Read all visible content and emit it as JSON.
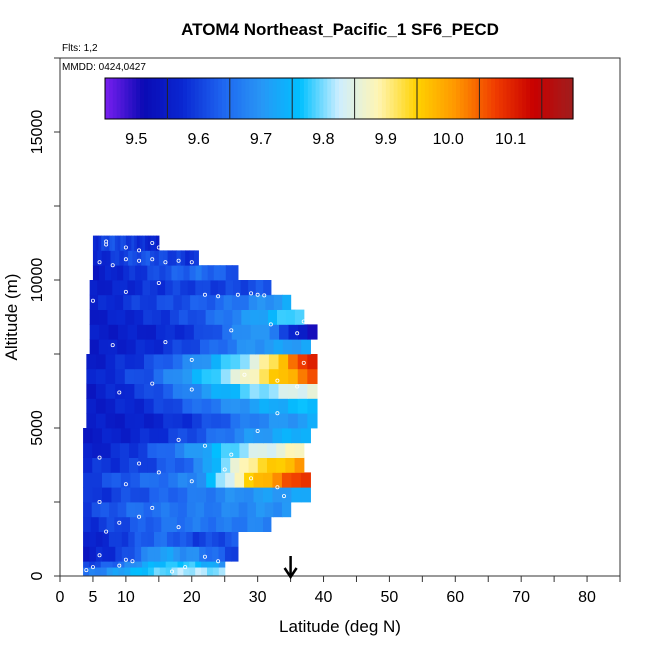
{
  "chart_data": {
    "type": "heatmap",
    "title": "ATOM4 Northeast_Pacific_1 SF6_PECD",
    "flights_label": "Flts: 1,2",
    "date_label": "MMDD: 0424,0427",
    "xlabel": "Latitude (deg N)",
    "ylabel": "Altitude (m)",
    "xlim": [
      0,
      85
    ],
    "ylim": [
      0,
      17500
    ],
    "x_ticks": [
      0,
      5,
      10,
      20,
      30,
      40,
      50,
      60,
      70,
      80
    ],
    "y_ticks": [
      0,
      5000,
      10000,
      15000
    ],
    "colorbar": {
      "min": 9.45,
      "max": 10.2,
      "ticks": [
        9.5,
        9.6,
        9.7,
        9.8,
        9.9,
        10.0,
        10.1
      ],
      "tick_labels": [
        "9.5",
        "9.6",
        "9.7",
        "9.8",
        "9.9",
        "10.0",
        "10.1"
      ],
      "stops": [
        "#7a1ff0",
        "#0a0ab4",
        "#0a28d2",
        "#1e64f0",
        "#2896f5",
        "#00c0ff",
        "#cdeeff",
        "#fff5b4",
        "#ffd200",
        "#ff9600",
        "#f03c00",
        "#c80000",
        "#a01e1e"
      ]
    },
    "marker_latitude": 35,
    "layers": [
      {
        "alt_bottom": 0,
        "alt_top": 300,
        "lat_start": 3.5,
        "lat_end": 25,
        "values": [
          9.65,
          9.72,
          9.78,
          9.82,
          9.8
        ]
      },
      {
        "alt_bottom": 300,
        "alt_top": 500,
        "lat_start": 3.5,
        "lat_end": 25,
        "values": [
          9.6,
          9.65,
          9.75,
          9.78,
          9.7
        ]
      },
      {
        "alt_bottom": 500,
        "alt_top": 1000,
        "lat_start": 3.5,
        "lat_end": 27,
        "values": [
          9.55,
          9.6,
          9.72,
          9.68,
          9.6
        ]
      },
      {
        "alt_bottom": 1000,
        "alt_top": 1500,
        "lat_start": 3.5,
        "lat_end": 27,
        "values": [
          9.55,
          9.6,
          9.65,
          9.6,
          9.62
        ]
      },
      {
        "alt_bottom": 1500,
        "alt_top": 2000,
        "lat_start": 3.5,
        "lat_end": 32,
        "values": [
          9.58,
          9.62,
          9.66,
          9.66,
          9.68
        ]
      },
      {
        "alt_bottom": 2000,
        "alt_top": 2500,
        "lat_start": 3.5,
        "lat_end": 35,
        "values": [
          9.6,
          9.65,
          9.66,
          9.68,
          9.7
        ]
      },
      {
        "alt_bottom": 2500,
        "alt_top": 3000,
        "lat_start": 3.5,
        "lat_end": 38,
        "values": [
          9.58,
          9.62,
          9.66,
          9.7,
          9.72
        ]
      },
      {
        "alt_bottom": 3000,
        "alt_top": 3500,
        "lat_start": 3.5,
        "lat_end": 38,
        "values": [
          9.6,
          9.64,
          9.68,
          9.95,
          10.1
        ]
      },
      {
        "alt_bottom": 3500,
        "alt_top": 4000,
        "lat_start": 3.5,
        "lat_end": 37,
        "values": [
          9.58,
          9.6,
          9.65,
          9.9,
          10.0
        ]
      },
      {
        "alt_bottom": 4000,
        "alt_top": 4500,
        "lat_start": 3.5,
        "lat_end": 37,
        "values": [
          9.55,
          9.6,
          9.7,
          9.82,
          9.88
        ]
      },
      {
        "alt_bottom": 4500,
        "alt_top": 5000,
        "lat_start": 3.5,
        "lat_end": 38,
        "values": [
          9.55,
          9.57,
          9.62,
          9.7,
          9.75
        ]
      },
      {
        "alt_bottom": 5000,
        "alt_top": 5500,
        "lat_start": 4,
        "lat_end": 39,
        "values": [
          9.55,
          9.56,
          9.6,
          9.68,
          9.72
        ]
      },
      {
        "alt_bottom": 5500,
        "alt_top": 6000,
        "lat_start": 4,
        "lat_end": 39,
        "values": [
          9.55,
          9.58,
          9.65,
          9.72,
          9.76
        ]
      },
      {
        "alt_bottom": 6000,
        "alt_top": 6500,
        "lat_start": 4,
        "lat_end": 39,
        "values": [
          9.55,
          9.6,
          9.7,
          9.8,
          9.86
        ]
      },
      {
        "alt_bottom": 6500,
        "alt_top": 7000,
        "lat_start": 4,
        "lat_end": 39,
        "values": [
          9.56,
          9.62,
          9.75,
          9.9,
          10.05
        ]
      },
      {
        "alt_bottom": 7000,
        "alt_top": 7500,
        "lat_start": 4,
        "lat_end": 39,
        "values": [
          9.55,
          9.6,
          9.7,
          9.85,
          10.12
        ]
      },
      {
        "alt_bottom": 7500,
        "alt_top": 8000,
        "lat_start": 4.5,
        "lat_end": 38,
        "values": [
          9.55,
          9.57,
          9.62,
          9.7,
          9.72
        ]
      },
      {
        "alt_bottom": 8000,
        "alt_top": 8500,
        "lat_start": 4.5,
        "lat_end": 39,
        "values": [
          9.55,
          9.56,
          9.6,
          9.72,
          9.5
        ]
      },
      {
        "alt_bottom": 8500,
        "alt_top": 9000,
        "lat_start": 4.5,
        "lat_end": 37,
        "values": [
          9.55,
          9.58,
          9.62,
          9.7,
          9.8
        ]
      },
      {
        "alt_bottom": 9000,
        "alt_top": 9500,
        "lat_start": 4.5,
        "lat_end": 35,
        "values": [
          9.56,
          9.6,
          9.62,
          9.66,
          9.72
        ]
      },
      {
        "alt_bottom": 9500,
        "alt_top": 10000,
        "lat_start": 4.5,
        "lat_end": 32,
        "values": [
          9.55,
          9.58,
          9.6,
          9.6,
          9.62
        ]
      },
      {
        "alt_bottom": 10000,
        "alt_top": 10500,
        "lat_start": 5,
        "lat_end": 27,
        "values": [
          9.55,
          9.58,
          9.62,
          9.65,
          9.62
        ]
      },
      {
        "alt_bottom": 10500,
        "alt_top": 11000,
        "lat_start": 5,
        "lat_end": 21,
        "values": [
          9.56,
          9.6,
          9.62,
          9.6,
          9.58
        ]
      },
      {
        "alt_bottom": 11000,
        "alt_top": 11500,
        "lat_start": 5,
        "lat_end": 15,
        "values": [
          9.57,
          9.62,
          9.6,
          9.58,
          9.56
        ]
      }
    ],
    "points": [
      [
        4,
        200
      ],
      [
        5,
        300
      ],
      [
        6,
        700
      ],
      [
        9,
        350
      ],
      [
        10,
        550
      ],
      [
        11,
        500
      ],
      [
        17,
        150
      ],
      [
        19,
        300
      ],
      [
        22,
        650
      ],
      [
        24,
        500
      ],
      [
        7,
        1500
      ],
      [
        9,
        1800
      ],
      [
        12,
        2000
      ],
      [
        18,
        1650
      ],
      [
        14,
        2300
      ],
      [
        6,
        2500
      ],
      [
        10,
        3100
      ],
      [
        15,
        3500
      ],
      [
        20,
        3200
      ],
      [
        25,
        3600
      ],
      [
        29,
        3300
      ],
      [
        33,
        3000
      ],
      [
        34,
        2700
      ],
      [
        6,
        4000
      ],
      [
        12,
        3800
      ],
      [
        18,
        4600
      ],
      [
        22,
        4400
      ],
      [
        26,
        4100
      ],
      [
        30,
        4900
      ],
      [
        33,
        5500
      ],
      [
        9,
        6200
      ],
      [
        14,
        6500
      ],
      [
        20,
        6300
      ],
      [
        28,
        6800
      ],
      [
        33,
        6600
      ],
      [
        36,
        6400
      ],
      [
        37,
        7200
      ],
      [
        8,
        7800
      ],
      [
        16,
        7900
      ],
      [
        20,
        7300
      ],
      [
        26,
        8300
      ],
      [
        32,
        8500
      ],
      [
        36,
        8200
      ],
      [
        37,
        8600
      ],
      [
        5,
        9300
      ],
      [
        10,
        9600
      ],
      [
        15,
        9900
      ],
      [
        22,
        9500
      ],
      [
        24,
        9450
      ],
      [
        27,
        9500
      ],
      [
        29,
        9550
      ],
      [
        30,
        9500
      ],
      [
        31,
        9480
      ],
      [
        6,
        10600
      ],
      [
        8,
        10500
      ],
      [
        10,
        10700
      ],
      [
        12,
        10650
      ],
      [
        14,
        10700
      ],
      [
        16,
        10600
      ],
      [
        18,
        10650
      ],
      [
        20,
        10600
      ],
      [
        7,
        11200
      ],
      [
        10,
        11100
      ],
      [
        12,
        11000
      ],
      [
        14,
        11250
      ],
      [
        15,
        11100
      ],
      [
        7,
        11300
      ]
    ]
  }
}
